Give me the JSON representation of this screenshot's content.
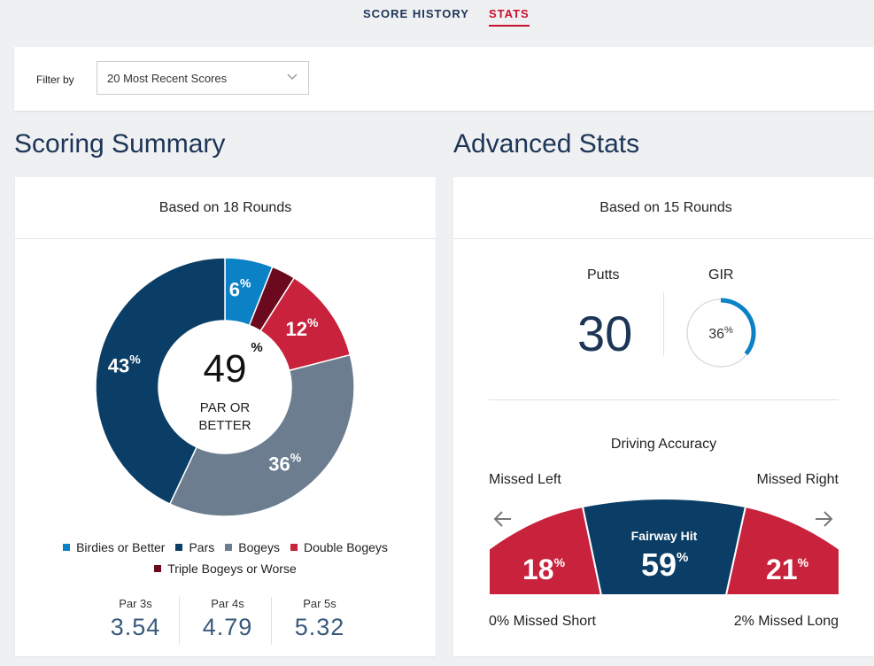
{
  "tabs": {
    "history": "SCORE HISTORY",
    "stats": "STATS"
  },
  "filter": {
    "label": "Filter by",
    "value": "20 Most Recent Scores"
  },
  "scoring": {
    "title": "Scoring Summary",
    "based_on": "Based on 18 Rounds",
    "center_value": "49",
    "center_pct": "%",
    "center_label_1": "PAR OR",
    "center_label_2": "BETTER",
    "segments": [
      {
        "name": "Birdies or Better",
        "value": 6,
        "label": "6",
        "color": "#0b82c6"
      },
      {
        "name": "Triple Bogeys or Worse",
        "value": 3,
        "label": "",
        "color": "#6b0a1f"
      },
      {
        "name": "Double Bogeys",
        "value": 12,
        "label": "12",
        "color": "#c8223c"
      },
      {
        "name": "Bogeys",
        "value": 36,
        "label": "36",
        "color": "#6b7d8f"
      },
      {
        "name": "Pars",
        "value": 43,
        "label": "43",
        "color": "#0b3e66"
      }
    ],
    "legend": [
      {
        "label": "Birdies or Better",
        "color": "#0b82c6"
      },
      {
        "label": "Pars",
        "color": "#0b3e66"
      },
      {
        "label": "Bogeys",
        "color": "#6b7d8f"
      },
      {
        "label": "Double Bogeys",
        "color": "#c8223c"
      },
      {
        "label": "Triple Bogeys or Worse",
        "color": "#6b0a1f"
      }
    ],
    "par3": {
      "label": "Par 3s",
      "value": "3.54"
    },
    "par4": {
      "label": "Par 4s",
      "value": "4.79"
    },
    "par5": {
      "label": "Par 5s",
      "value": "5.32"
    }
  },
  "advanced": {
    "title": "Advanced Stats",
    "based_on": "Based on 15 Rounds",
    "putts_label": "Putts",
    "putts_value": "30",
    "gir_label": "GIR",
    "gir_value": "36",
    "gir_pct": "%",
    "gir_fraction": 0.36,
    "driving_title": "Driving Accuracy",
    "missed_left_label": "Missed Left",
    "missed_right_label": "Missed Right",
    "missed_left_value": "18",
    "fairway_label": "Fairway Hit",
    "fairway_value": "59",
    "missed_right_value": "21",
    "missed_short": "0% Missed Short",
    "missed_long": "2% Missed Long",
    "colors": {
      "miss": "#c8223c",
      "hit": "#0b3e66",
      "accent": "#0b82c6"
    }
  }
}
